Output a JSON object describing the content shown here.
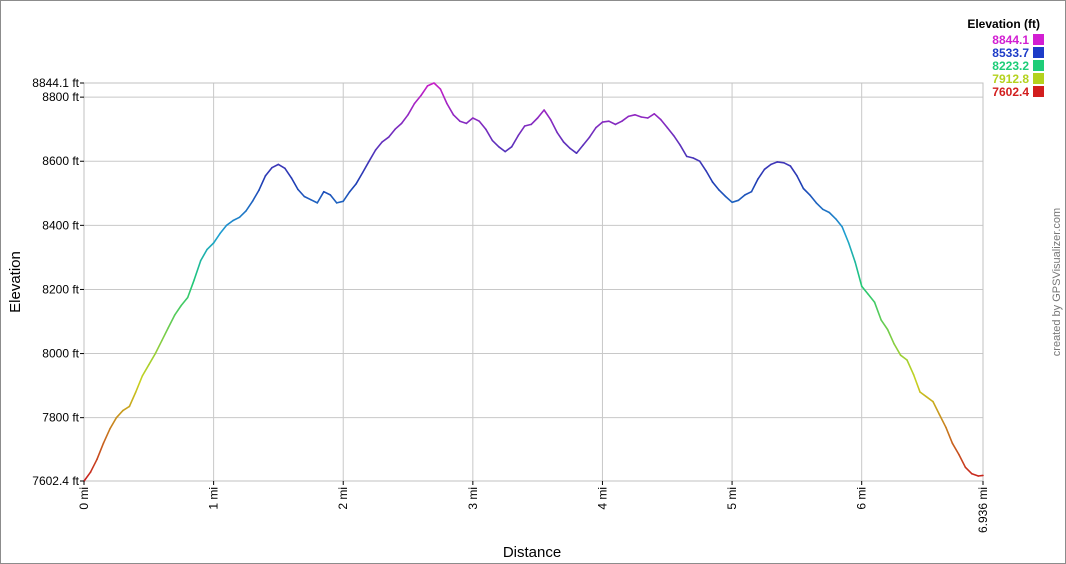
{
  "chart_data": {
    "type": "line",
    "title": "",
    "xlabel": "Distance",
    "ylabel": "Elevation",
    "xlim": [
      0,
      6.936
    ],
    "ylim": [
      7602.4,
      8844.1
    ],
    "grid": true,
    "x_ticks": [
      {
        "value": 0,
        "label": "0 mi"
      },
      {
        "value": 1,
        "label": "1 mi"
      },
      {
        "value": 2,
        "label": "2 mi"
      },
      {
        "value": 3,
        "label": "3 mi"
      },
      {
        "value": 4,
        "label": "4 mi"
      },
      {
        "value": 5,
        "label": "5 mi"
      },
      {
        "value": 6,
        "label": "6 mi"
      },
      {
        "value": 6.936,
        "label": "6.936 mi"
      }
    ],
    "y_ticks": [
      {
        "value": 7602.4,
        "label": "7602.4 ft"
      },
      {
        "value": 7800,
        "label": "7800 ft"
      },
      {
        "value": 8000,
        "label": "8000 ft"
      },
      {
        "value": 8200,
        "label": "8200 ft"
      },
      {
        "value": 8400,
        "label": "8400 ft"
      },
      {
        "value": 8600,
        "label": "8600 ft"
      },
      {
        "value": 8800,
        "label": "8800 ft"
      },
      {
        "value": 8844.1,
        "label": "8844.1 ft"
      }
    ],
    "legend": {
      "title": "Elevation (ft)",
      "placement": "top-right",
      "entries": [
        {
          "label": "8844.1",
          "color": "#d21ed2"
        },
        {
          "label": "8533.7",
          "color": "#1e3cc8"
        },
        {
          "label": "8223.2",
          "color": "#1ecd78"
        },
        {
          "label": "7912.8",
          "color": "#b4d21e"
        },
        {
          "label": "7602.4",
          "color": "#d21e1e"
        }
      ]
    },
    "series": [
      {
        "x": [
          0,
          0.05,
          0.1,
          0.15,
          0.2,
          0.25,
          0.3,
          0.35,
          0.4,
          0.45,
          0.5,
          0.55,
          0.6,
          0.65,
          0.7,
          0.75,
          0.8,
          0.85,
          0.9,
          0.95,
          1.0,
          1.05,
          1.1,
          1.15,
          1.2,
          1.25,
          1.3,
          1.35,
          1.4,
          1.45,
          1.5,
          1.55,
          1.6,
          1.65,
          1.7,
          1.75,
          1.8,
          1.85,
          1.9,
          1.95,
          2.0,
          2.05,
          2.1,
          2.15,
          2.2,
          2.25,
          2.3,
          2.35,
          2.4,
          2.45,
          2.5,
          2.55,
          2.6,
          2.65,
          2.7,
          2.75,
          2.8,
          2.85,
          2.9,
          2.95,
          3.0,
          3.05,
          3.1,
          3.15,
          3.2,
          3.25,
          3.3,
          3.35,
          3.4,
          3.45,
          3.5,
          3.55,
          3.6,
          3.65,
          3.7,
          3.75,
          3.8,
          3.85,
          3.9,
          3.95,
          4.0,
          4.05,
          4.1,
          4.15,
          4.2,
          4.25,
          4.3,
          4.35,
          4.4,
          4.45,
          4.5,
          4.55,
          4.6,
          4.65,
          4.7,
          4.75,
          4.8,
          4.85,
          4.9,
          4.95,
          5.0,
          5.05,
          5.1,
          5.15,
          5.2,
          5.25,
          5.3,
          5.35,
          5.4,
          5.45,
          5.5,
          5.55,
          5.6,
          5.65,
          5.7,
          5.75,
          5.8,
          5.85,
          5.9,
          5.95,
          6.0,
          6.05,
          6.1,
          6.15,
          6.2,
          6.25,
          6.3,
          6.35,
          6.4,
          6.45,
          6.5,
          6.55,
          6.6,
          6.65,
          6.7,
          6.75,
          6.8,
          6.85,
          6.9,
          6.936
        ],
        "y": [
          7602,
          7630,
          7670,
          7720,
          7765,
          7800,
          7822,
          7835,
          7880,
          7930,
          7965,
          8000,
          8040,
          8080,
          8120,
          8150,
          8175,
          8230,
          8290,
          8325,
          8345,
          8375,
          8400,
          8415,
          8425,
          8445,
          8475,
          8510,
          8555,
          8580,
          8590,
          8578,
          8548,
          8512,
          8490,
          8480,
          8470,
          8505,
          8495,
          8470,
          8475,
          8505,
          8530,
          8565,
          8600,
          8635,
          8660,
          8675,
          8700,
          8718,
          8745,
          8780,
          8805,
          8835,
          8844,
          8825,
          8780,
          8745,
          8725,
          8718,
          8735,
          8725,
          8700,
          8665,
          8645,
          8630,
          8645,
          8680,
          8710,
          8715,
          8735,
          8760,
          8730,
          8690,
          8660,
          8640,
          8625,
          8650,
          8675,
          8705,
          8722,
          8725,
          8715,
          8725,
          8740,
          8745,
          8738,
          8735,
          8748,
          8730,
          8705,
          8680,
          8650,
          8615,
          8610,
          8600,
          8570,
          8535,
          8510,
          8490,
          8472,
          8478,
          8495,
          8505,
          8545,
          8575,
          8590,
          8598,
          8595,
          8585,
          8555,
          8515,
          8495,
          8470,
          8450,
          8440,
          8420,
          8395,
          8345,
          8285,
          8210,
          8185,
          8160,
          8105,
          8075,
          8030,
          7995,
          7980,
          7935,
          7880,
          7865,
          7850,
          7810,
          7770,
          7720,
          7685,
          7645,
          7625,
          7618,
          7620
        ]
      }
    ]
  },
  "credit": "created by GPSVisualizer.com"
}
